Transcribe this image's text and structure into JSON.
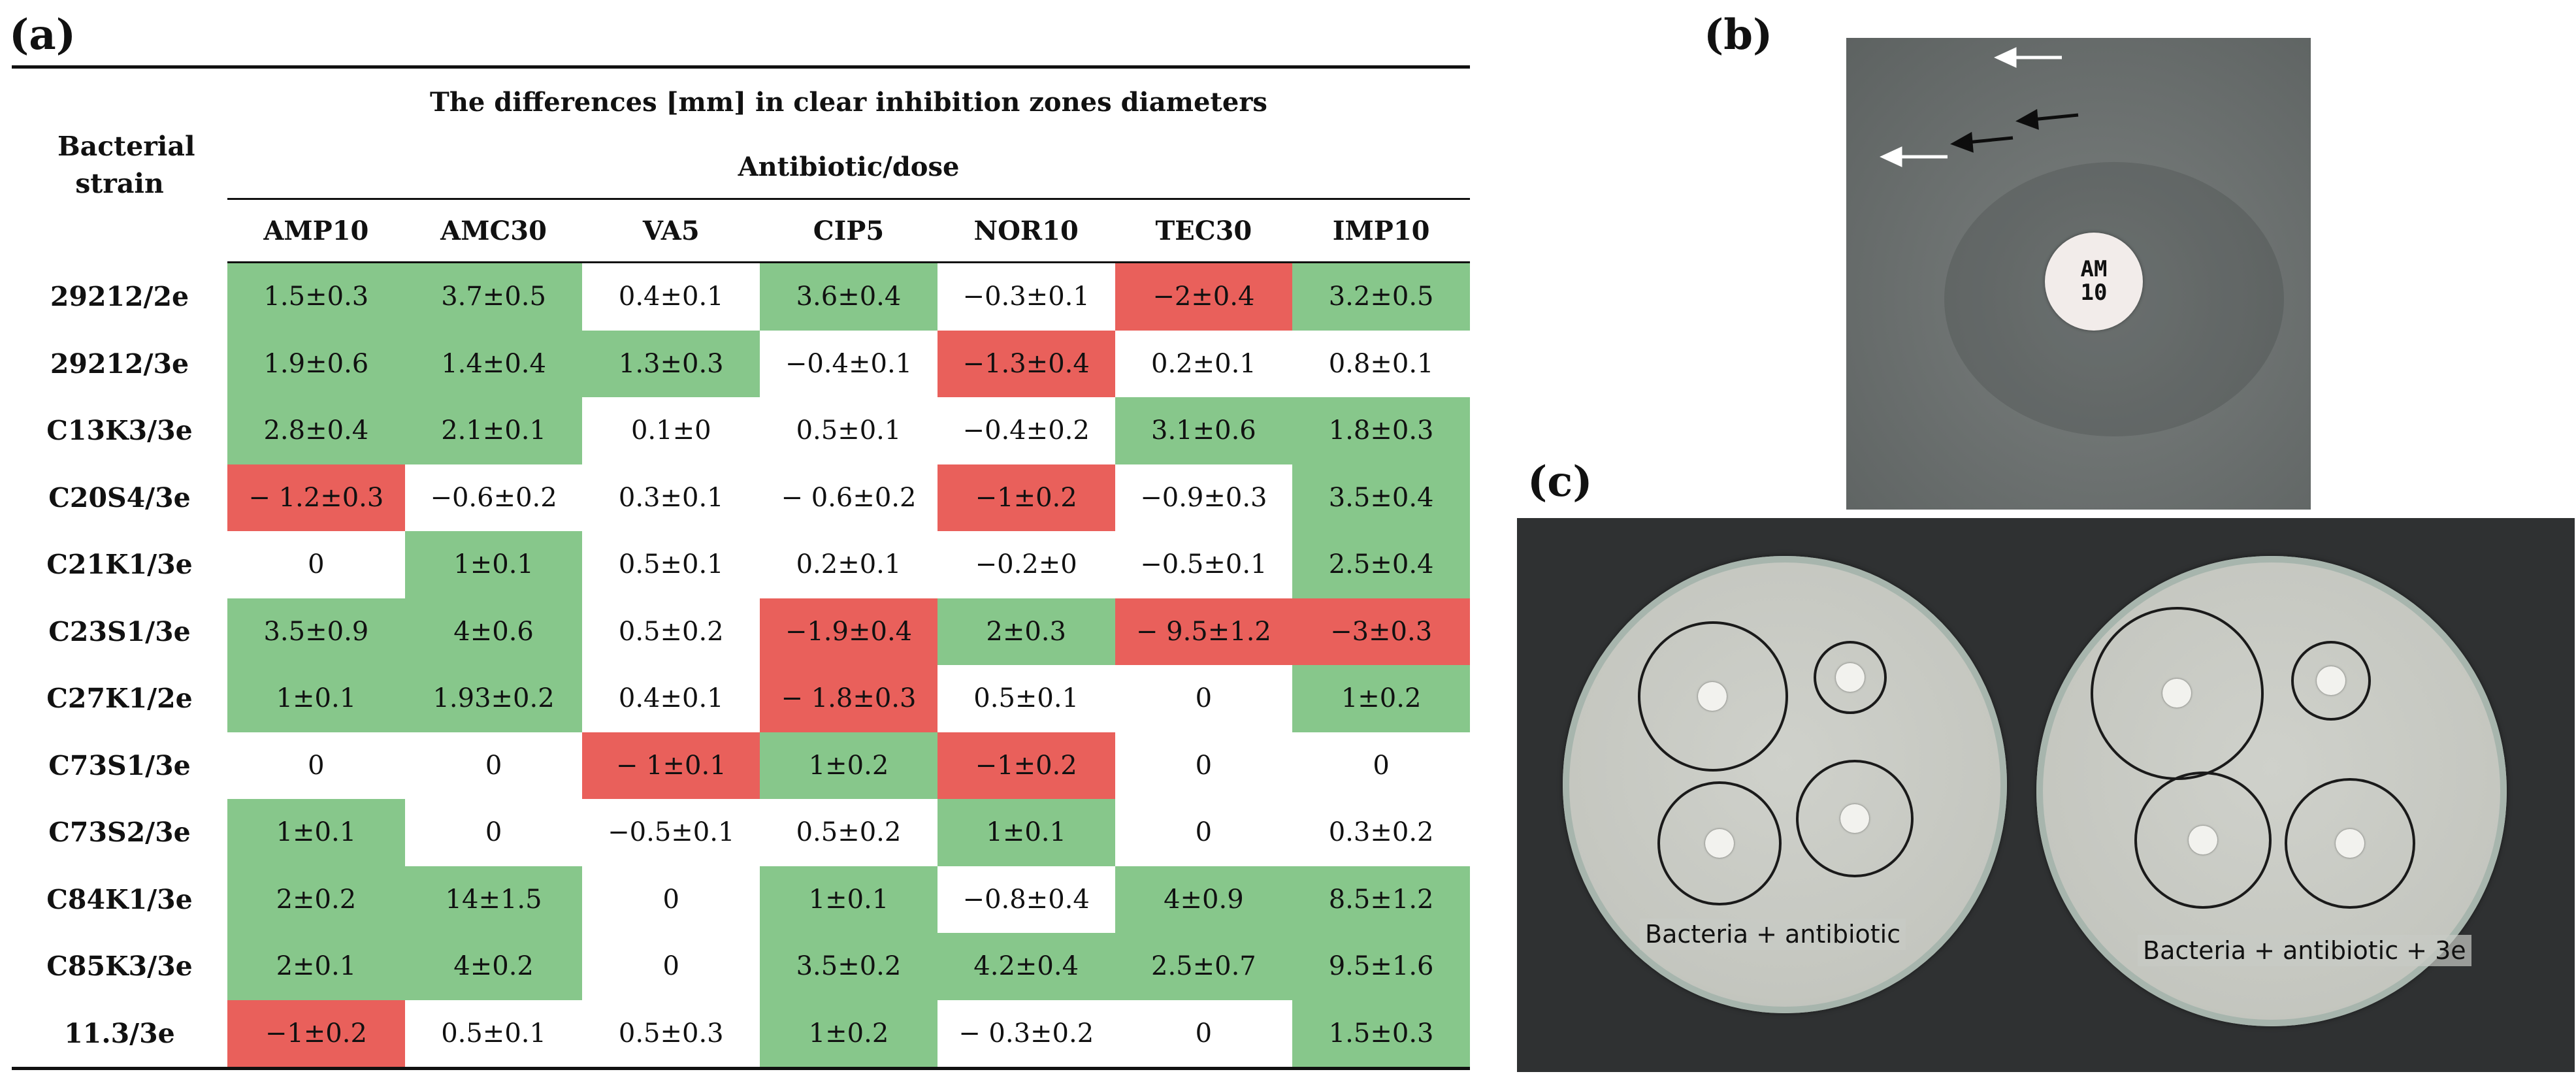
{
  "panels": {
    "a": "(a)",
    "b": "(b)",
    "c": "(c)"
  },
  "table": {
    "row_header": "Bacterial strain",
    "title": "The differences [mm] in clear inhibition zones diameters",
    "subtitle": "Antibiotic/dose",
    "columns": [
      "AMP10",
      "AMC30",
      "VA5",
      "CIP5",
      "NOR10",
      "TEC30",
      "IMP10"
    ],
    "rows": [
      {
        "strain": "29212/2e",
        "values": [
          "1.5±0.3",
          "3.7±0.5",
          "0.4±0.1",
          "3.6±0.4",
          "−0.3±0.1",
          "−2±0.4",
          "3.2±0.5"
        ],
        "colors": [
          "g",
          "g",
          "n",
          "g",
          "n",
          "r",
          "g"
        ]
      },
      {
        "strain": "29212/3e",
        "values": [
          "1.9±0.6",
          "1.4±0.4",
          "1.3±0.3",
          "−0.4±0.1",
          "−1.3±0.4",
          "0.2±0.1",
          "0.8±0.1"
        ],
        "colors": [
          "g",
          "g",
          "g",
          "n",
          "r",
          "n",
          "n"
        ]
      },
      {
        "strain": "C13K3/3e",
        "values": [
          "2.8±0.4",
          "2.1±0.1",
          "0.1±0",
          "0.5±0.1",
          "−0.4±0.2",
          "3.1±0.6",
          "1.8±0.3"
        ],
        "colors": [
          "g",
          "g",
          "n",
          "n",
          "n",
          "g",
          "g"
        ]
      },
      {
        "strain": "C20S4/3e",
        "values": [
          "− 1.2±0.3",
          "−0.6±0.2",
          "0.3±0.1",
          "− 0.6±0.2",
          "−1±0.2",
          "−0.9±0.3",
          "3.5±0.4"
        ],
        "colors": [
          "r",
          "n",
          "n",
          "n",
          "r",
          "n",
          "g"
        ]
      },
      {
        "strain": "C21K1/3e",
        "values": [
          "0",
          "1±0.1",
          "0.5±0.1",
          "0.2±0.1",
          "−0.2±0",
          "−0.5±0.1",
          "2.5±0.4"
        ],
        "colors": [
          "n",
          "g",
          "n",
          "n",
          "n",
          "n",
          "g"
        ]
      },
      {
        "strain": "C23S1/3e",
        "values": [
          "3.5±0.9",
          "4±0.6",
          "0.5±0.2",
          "−1.9±0.4",
          "2±0.3",
          "− 9.5±1.2",
          "−3±0.3"
        ],
        "colors": [
          "g",
          "g",
          "n",
          "r",
          "g",
          "r",
          "r"
        ]
      },
      {
        "strain": "C27K1/2e",
        "values": [
          "1±0.1",
          "1.93±0.2",
          "0.4±0.1",
          "− 1.8±0.3",
          "0.5±0.1",
          "0",
          "1±0.2"
        ],
        "colors": [
          "g",
          "g",
          "n",
          "r",
          "n",
          "n",
          "g"
        ]
      },
      {
        "strain": "C73S1/3e",
        "values": [
          "0",
          "0",
          "− 1±0.1",
          "1±0.2",
          "−1±0.2",
          "0",
          "0"
        ],
        "colors": [
          "n",
          "n",
          "r",
          "g",
          "r",
          "n",
          "n"
        ]
      },
      {
        "strain": "C73S2/3e",
        "values": [
          "1±0.1",
          "0",
          "−0.5±0.1",
          "0.5±0.2",
          "1±0.1",
          "0",
          "0.3±0.2"
        ],
        "colors": [
          "g",
          "n",
          "n",
          "n",
          "g",
          "n",
          "n"
        ]
      },
      {
        "strain": "C84K1/3e",
        "values": [
          "2±0.2",
          "14±1.5",
          "0",
          "1±0.1",
          "−0.8±0.4",
          "4±0.9",
          "8.5±1.2"
        ],
        "colors": [
          "g",
          "g",
          "n",
          "g",
          "n",
          "g",
          "g"
        ]
      },
      {
        "strain": "C85K3/3e",
        "values": [
          "2±0.1",
          "4±0.2",
          "0",
          "3.5±0.2",
          "4.2±0.4",
          "2.5±0.7",
          "9.5±1.6"
        ],
        "colors": [
          "g",
          "g",
          "n",
          "g",
          "g",
          "g",
          "g"
        ]
      },
      {
        "strain": "11.3/3e",
        "values": [
          "−1±0.2",
          "0.5±0.1",
          "0.5±0.3",
          "1±0.2",
          "− 0.3±0.2",
          "0",
          "1.5±0.3"
        ],
        "colors": [
          "r",
          "n",
          "n",
          "g",
          "n",
          "n",
          "g"
        ]
      }
    ]
  },
  "photo_b": {
    "disc_label": "AM\n10"
  },
  "photo_c": {
    "left_caption": "Bacteria + antibiotic",
    "right_caption": "Bacteria + antibiotic + 3e"
  },
  "colors": {
    "green": "#87c78b",
    "red": "#e9605b"
  }
}
